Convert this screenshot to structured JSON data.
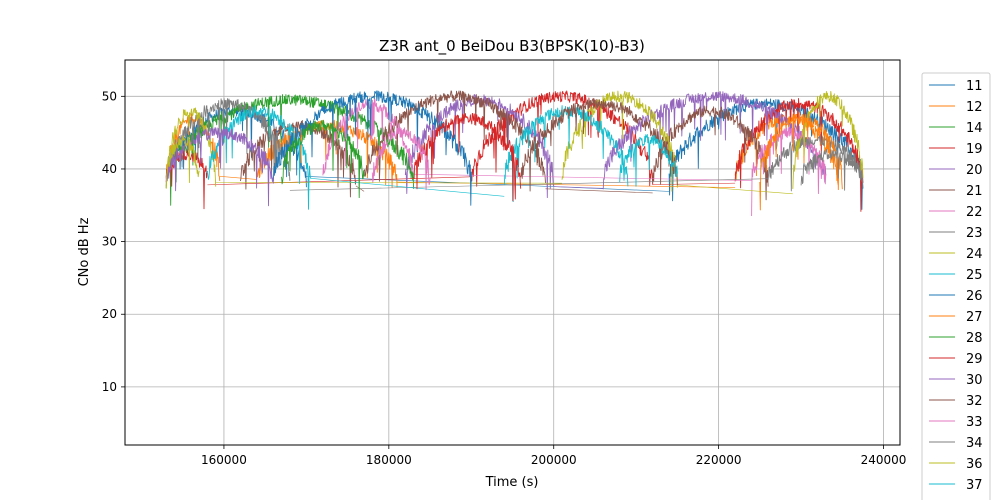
{
  "chart_data": {
    "type": "line",
    "title": "Z3R ant_0 BeiDou B3(BPSK(10)-B3)",
    "xlabel": "Time (s)",
    "ylabel": "CNo dB Hz",
    "xlim": [
      148000,
      242000
    ],
    "ylim": [
      2,
      55
    ],
    "xticks": [
      160000,
      180000,
      200000,
      220000,
      240000
    ],
    "xtick_labels": [
      "160000",
      "180000",
      "200000",
      "220000",
      "240000"
    ],
    "yticks": [
      10,
      20,
      30,
      40,
      50
    ],
    "ytick_labels": [
      "10",
      "20",
      "30",
      "40",
      "50"
    ],
    "grid": true,
    "legend_position": "right, outside plot area",
    "series": [
      {
        "name": "11",
        "color": "#1f77b4",
        "arcs": [
          {
            "x": [
              153000,
              170000
            ],
            "peak": 48
          },
          {
            "x": [
              214000,
              237500
            ],
            "peak": 49
          }
        ]
      },
      {
        "name": "12",
        "color": "#ff7f0e",
        "arcs": [
          {
            "x": [
              153000,
              159500
            ],
            "peak": 47
          },
          {
            "x": [
              164000,
              181000
            ],
            "peak": 46
          },
          {
            "x": [
              222000,
              234500
            ],
            "peak": 47
          }
        ]
      },
      {
        "name": "14",
        "color": "#2ca02c",
        "arcs": [
          {
            "x": [
              153000,
              183000
            ],
            "peak": 49.5
          }
        ]
      },
      {
        "name": "19",
        "color": "#d62728",
        "arcs": [
          {
            "x": [
              153000,
              158000
            ],
            "peak": 42
          },
          {
            "x": [
              190000,
              212000
            ],
            "peak": 50
          },
          {
            "x": [
              222000,
              237500
            ],
            "peak": 49
          }
        ]
      },
      {
        "name": "20",
        "color": "#9467bd",
        "arcs": [
          {
            "x": [
              182000,
              200000
            ],
            "peak": 49.5
          },
          {
            "x": [
              206000,
              233000
            ],
            "peak": 50
          }
        ]
      },
      {
        "name": "21",
        "color": "#8c564b",
        "arcs": [
          {
            "x": [
              162000,
              176000
            ],
            "peak": 46
          },
          {
            "x": [
              177000,
              199000
            ],
            "peak": 50
          },
          {
            "x": [
              212000,
              226000
            ],
            "peak": 48
          }
        ]
      },
      {
        "name": "22",
        "color": "#e377c2",
        "arcs": [
          {
            "x": [
              172000,
              183000
            ],
            "peak": 49
          },
          {
            "x": [
              224000,
              233000
            ],
            "peak": 45
          }
        ]
      },
      {
        "name": "23",
        "color": "#7f7f7f",
        "arcs": [
          {
            "x": [
              153000,
              168000
            ],
            "peak": 49
          },
          {
            "x": [
              226000,
              237500
            ],
            "peak": 44
          }
        ]
      },
      {
        "name": "24",
        "color": "#bcbd22",
        "arcs": [
          {
            "x": [
              153000,
              159000
            ],
            "peak": 48
          },
          {
            "x": [
              201000,
              215000
            ],
            "peak": 50
          },
          {
            "x": [
              229000,
              237500
            ],
            "peak": 50
          }
        ]
      },
      {
        "name": "25",
        "color": "#17becf",
        "arcs": [
          {
            "x": [
              158000,
              170500
            ],
            "peak": 48
          },
          {
            "x": [
              194000,
              209000
            ],
            "peak": 48
          }
        ]
      },
      {
        "name": "26",
        "color": "#1f77b4",
        "arcs": [
          {
            "x": [
              166000,
              190000
            ],
            "peak": 50
          }
        ]
      },
      {
        "name": "27",
        "color": "#ff7f0e",
        "arcs": [
          {
            "x": [
              225000,
              235000
            ],
            "peak": 47
          }
        ]
      },
      {
        "name": "28",
        "color": "#2ca02c",
        "arcs": [
          {
            "x": [
              167000,
              177000
            ],
            "peak": 46
          }
        ]
      },
      {
        "name": "29",
        "color": "#d62728",
        "arcs": [
          {
            "x": [
              183000,
              196000
            ],
            "peak": 47
          }
        ]
      },
      {
        "name": "30",
        "color": "#9467bd",
        "arcs": [
          {
            "x": [
              153000,
              166000
            ],
            "peak": 45
          }
        ]
      },
      {
        "name": "32",
        "color": "#8c564b",
        "arcs": [
          {
            "x": [
              196000,
              215000
            ],
            "peak": 49
          }
        ]
      },
      {
        "name": "33",
        "color": "#e377c2",
        "arcs": [
          {
            "x": [
              178000,
              185000
            ],
            "peak": 45
          }
        ]
      },
      {
        "name": "34",
        "color": "#7f7f7f",
        "arcs": [
          {
            "x": [
              230000,
              237500
            ],
            "peak": 42
          }
        ]
      },
      {
        "name": "36",
        "color": "#bcbd22",
        "arcs": [
          {
            "x": [
              153000,
              157000
            ],
            "peak": 44
          }
        ]
      },
      {
        "name": "37",
        "color": "#17becf",
        "arcs": [
          {
            "x": [
              208000,
              215000
            ],
            "peak": 44
          }
        ]
      }
    ],
    "legend_entries": [
      "11",
      "12",
      "14",
      "19",
      "20",
      "21",
      "22",
      "23",
      "24",
      "25",
      "26",
      "27",
      "28",
      "29",
      "30",
      "32",
      "33",
      "34",
      "36",
      "37"
    ]
  }
}
